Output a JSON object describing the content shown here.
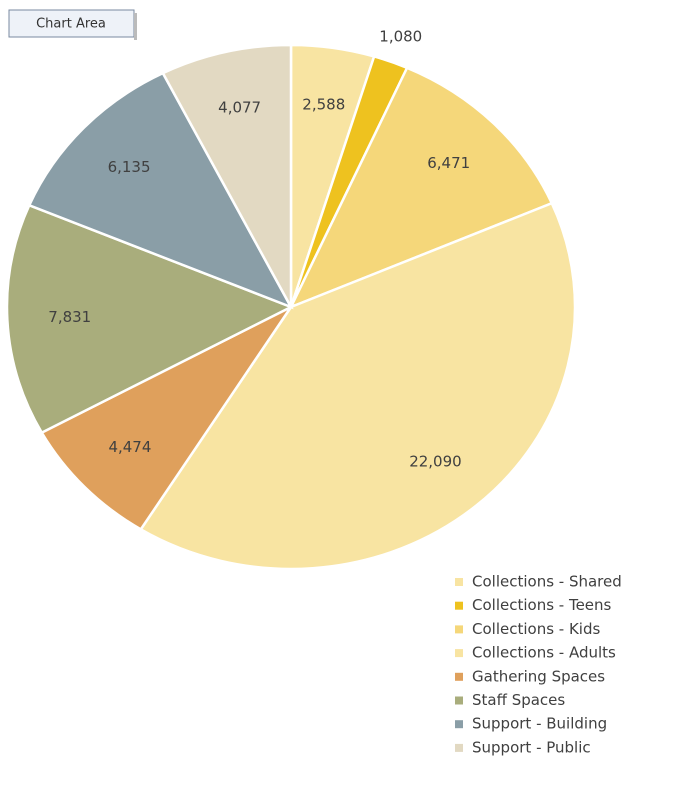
{
  "tooltip": "Chart Area",
  "chart_data": {
    "type": "pie",
    "categories": [
      "Collections - Shared",
      "Collections - Teens",
      "Collections - Kids",
      "Collections - Adults",
      "Gathering Spaces",
      "Staff Spaces",
      "Support - Building",
      "Support - Public"
    ],
    "values": [
      2588,
      1080,
      6471,
      22090,
      4474,
      7831,
      6135,
      4077
    ],
    "value_labels": [
      "2,588",
      "1,080",
      "6,471",
      "22,090",
      "4,474",
      "7,831",
      "6,135",
      "4,077"
    ],
    "colors": [
      "#f8e4a2",
      "#eec21f",
      "#f5d77a",
      "#f8e4a2",
      "#dfa05c",
      "#a9ad7c",
      "#8a9ea7",
      "#e2d9c2"
    ],
    "legend": "bottom-right"
  }
}
